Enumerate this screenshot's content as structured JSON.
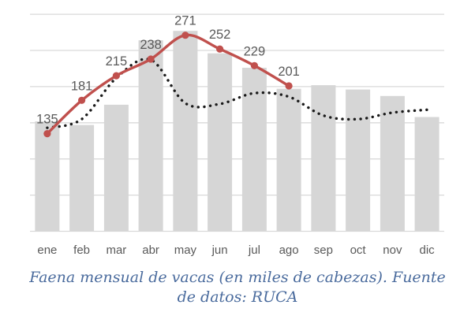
{
  "chart_data": {
    "type": "combo",
    "title": "",
    "categories": [
      "ene",
      "feb",
      "mar",
      "abr",
      "may",
      "jun",
      "jul",
      "ago",
      "sep",
      "oct",
      "nov",
      "dic"
    ],
    "y_axis": {
      "min": 0,
      "max": 300,
      "grid_step": 50,
      "tick_labels_visible": false
    },
    "grid": true,
    "grid_color": "#d9d9d9",
    "legend": "none",
    "axis_label_color": "#595959",
    "series": [
      {
        "name": "bars",
        "type": "bar",
        "color": "#d6d6d6",
        "values": [
          152,
          147,
          175,
          264,
          277,
          246,
          226,
          197,
          202,
          196,
          187,
          158
        ]
      },
      {
        "name": "line_solid",
        "type": "line",
        "style": "solid",
        "smooth": true,
        "marker": "circle",
        "color": "#c0504d",
        "values": [
          135,
          181,
          215,
          238,
          271,
          252,
          229,
          201
        ],
        "data_labels": [
          "135",
          "181",
          "215",
          "238",
          "271",
          "252",
          "229",
          "201"
        ],
        "data_label_color": "#595959"
      },
      {
        "name": "line_dotted",
        "type": "line",
        "style": "dotted",
        "smooth": true,
        "marker": "none",
        "color": "#1a1a1a",
        "values": [
          143,
          155,
          212,
          237,
          177,
          176,
          191,
          186,
          160,
          155,
          164,
          168
        ]
      }
    ]
  },
  "caption": {
    "full_text": "Faena mensual de vacas (en miles de cabezas). Fuente de datos: RUCA",
    "lines": [
      "Faena mensual de vacas (en miles de cabezas). Fuente",
      "de datos: RUCA"
    ],
    "color": "#4a6b9d"
  }
}
